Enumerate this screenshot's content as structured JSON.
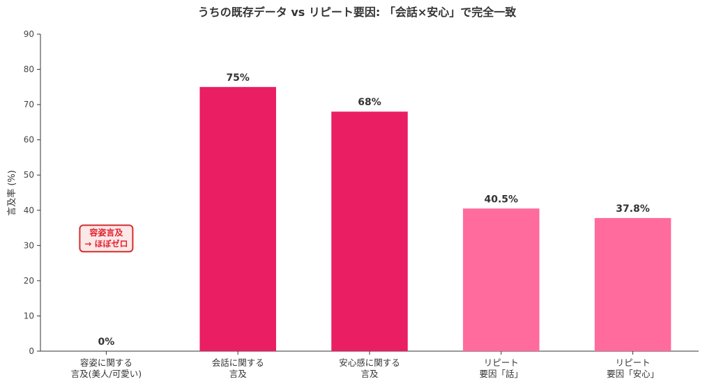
{
  "chart_data": {
    "type": "bar",
    "title": "うちの既存データ vs リピート要因: 「会話×安心」で完全一致",
    "ylabel": "言及率 (%)",
    "xlabel": "",
    "ylim": [
      0,
      90
    ],
    "yticks": [
      0,
      10,
      20,
      30,
      40,
      50,
      60,
      70,
      80,
      90
    ],
    "categories": [
      [
        "容姿に関する",
        "言及(美人/可愛い)"
      ],
      [
        "会話に関する",
        "言及"
      ],
      [
        "安心感に関する",
        "言及"
      ],
      [
        "リピート",
        "要因「話」"
      ],
      [
        "リピート",
        "要因「安心」"
      ]
    ],
    "values": [
      0,
      75,
      68,
      40.5,
      37.8
    ],
    "value_labels": [
      "0%",
      "75%",
      "68%",
      "40.5%",
      "37.8%"
    ],
    "colors": [
      "#e91e63",
      "#e91e63",
      "#e91e63",
      "#ff6b9d",
      "#ff6b9d"
    ],
    "annotation": {
      "lines": [
        "容姿言及",
        "→ ほぼゼロ"
      ],
      "y": 32,
      "text_color": "#e0202e",
      "border_color": "#d32f2f",
      "fill_color": "#fde8e8"
    },
    "grid": false,
    "legend": "none"
  }
}
